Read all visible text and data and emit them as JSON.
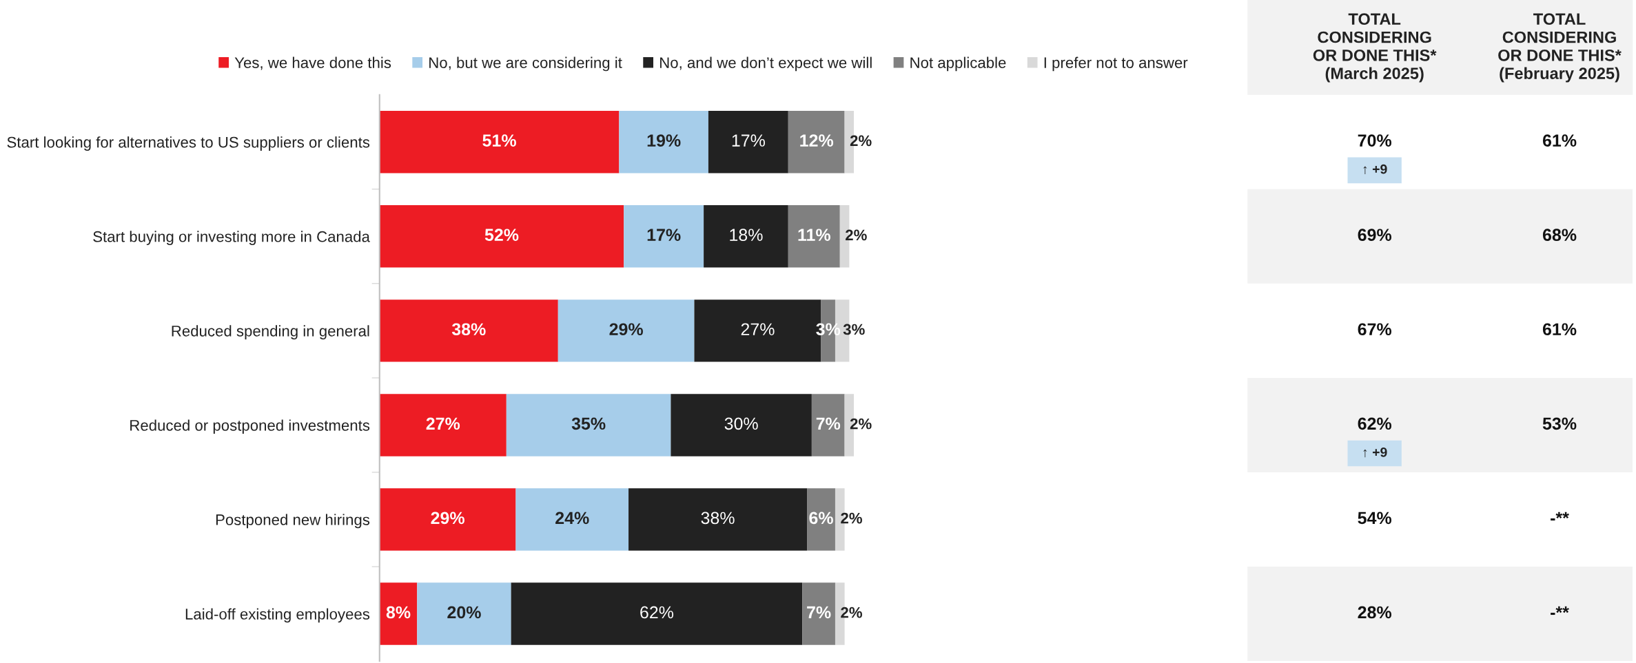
{
  "chart_data": [
    {
      "type": "bar",
      "orientation": "horizontal",
      "stacked": true,
      "legend": "top",
      "grid": false,
      "categories": [
        "Start looking for alternatives to US suppliers or clients",
        "Start buying or investing more in Canada",
        "Reduced spending in general",
        "Reduced or postponed investments",
        "Postponed new hirings",
        "Laid-off existing employees"
      ],
      "series": [
        {
          "name": "Yes, we have done this",
          "color": "#ed1c24",
          "values": [
            51,
            52,
            38,
            27,
            29,
            8
          ],
          "value_labels": [
            "51%",
            "52%",
            "38%",
            "27%",
            "29%",
            "8%"
          ]
        },
        {
          "name": "No, but we are considering it",
          "color": "#a6cdea",
          "values": [
            19,
            17,
            29,
            35,
            24,
            20
          ],
          "value_labels": [
            "19%",
            "17%",
            "29%",
            "35%",
            "24%",
            "20%"
          ]
        },
        {
          "name": "No, and we don’t expect we will",
          "color": "#222222",
          "values": [
            17,
            18,
            27,
            30,
            38,
            62
          ],
          "value_labels": [
            "17%",
            "18%",
            "27%",
            "30%",
            "38%",
            "62%"
          ]
        },
        {
          "name": "Not applicable",
          "color": "#808080",
          "values": [
            12,
            11,
            3,
            7,
            6,
            7
          ],
          "value_labels": [
            "12%",
            "11%",
            "3%",
            "7%",
            "6%",
            "7%"
          ]
        },
        {
          "name": "I prefer not to answer",
          "color": "#d9d9d9",
          "values": [
            2,
            2,
            3,
            2,
            2,
            2
          ],
          "value_labels": [
            "2%",
            "2%",
            "3%",
            "2%",
            "2%",
            "2%"
          ]
        }
      ]
    },
    {
      "type": "other",
      "annotations": [
        "TOTAL\nCONSIDERING\nOR DONE THIS*\n(March 2025)",
        "TOTAL\nCONSIDERING\nOR DONE THIS*\n(February 2025)",
        "70%\n↑ +9",
        "61%",
        "69%",
        "68%",
        "67%",
        "61%",
        "62%\n↑ +9",
        "53%",
        "54%",
        "-**",
        "28%",
        "-**"
      ]
    }
  ]
}
